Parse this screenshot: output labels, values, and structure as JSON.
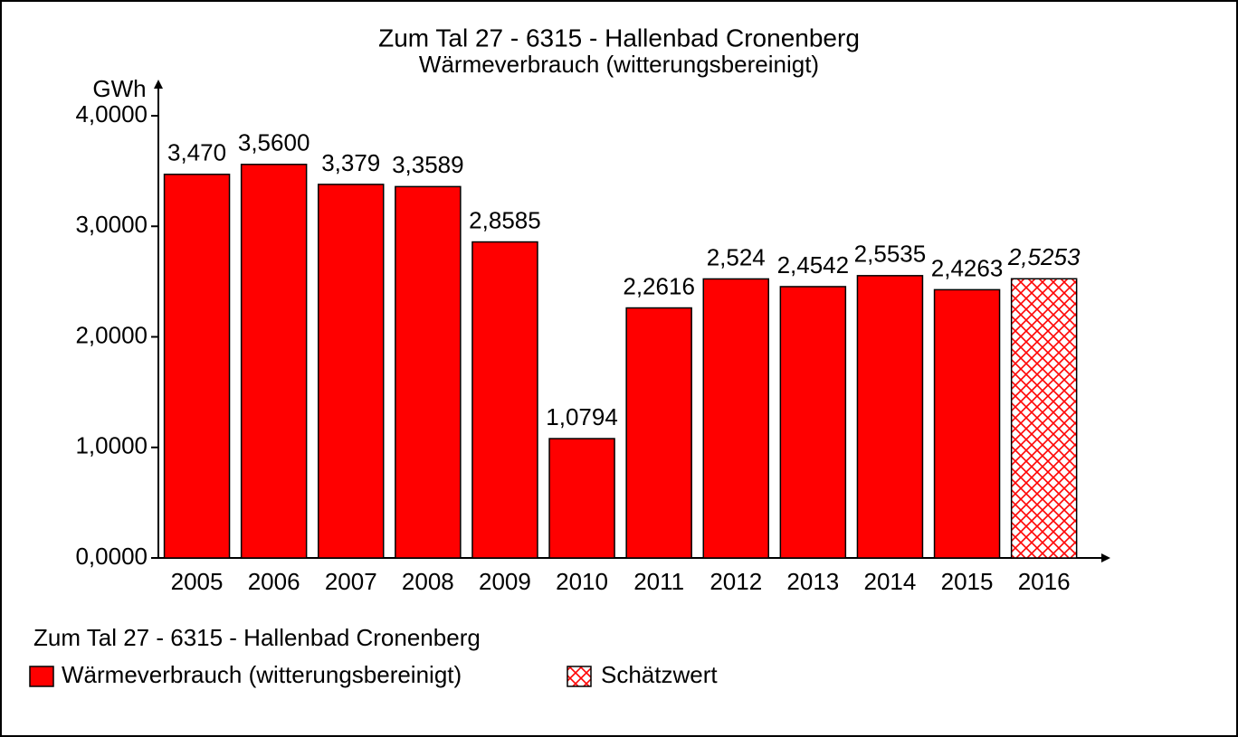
{
  "chart_data": {
    "type": "bar",
    "title": "Zum Tal 27 - 6315 - Hallenbad Cronenberg",
    "subtitle": "Wärmeverbrauch (witterungsbereinigt)",
    "y_label": "GWh",
    "categories": [
      "2005",
      "2006",
      "2007",
      "2008",
      "2009",
      "2010",
      "2011",
      "2012",
      "2013",
      "2014",
      "2015",
      "2016"
    ],
    "series": [
      {
        "name": "Wärmeverbrauch (witterungsbereinigt)",
        "color": "#ff0000",
        "values": [
          3.47,
          3.56,
          3.379,
          3.3589,
          2.8585,
          1.0794,
          2.2616,
          2.524,
          2.4542,
          2.5535,
          2.4263,
          2.5253
        ],
        "value_labels": [
          "3,470",
          "3,5600",
          "3,379",
          "3,3589",
          "2,8585",
          "1,0794",
          "2,2616",
          "2,524",
          "2,4542",
          "2,5535",
          "2,4263",
          "2,5253"
        ],
        "estimated": [
          false,
          false,
          false,
          false,
          false,
          false,
          false,
          false,
          false,
          false,
          false,
          true
        ]
      }
    ],
    "estimate_name": "Schätzwert",
    "legend_title": "Zum Tal 27 - 6315 - Hallenbad Cronenberg",
    "ylim": [
      0,
      4
    ],
    "yticks": [
      {
        "value": 0,
        "label": "0,0000"
      },
      {
        "value": 1,
        "label": "1,0000"
      },
      {
        "value": 2,
        "label": "2,0000"
      },
      {
        "value": 3,
        "label": "3,0000"
      },
      {
        "value": 4,
        "label": "4,0000"
      }
    ],
    "legend": "bottom-left"
  }
}
